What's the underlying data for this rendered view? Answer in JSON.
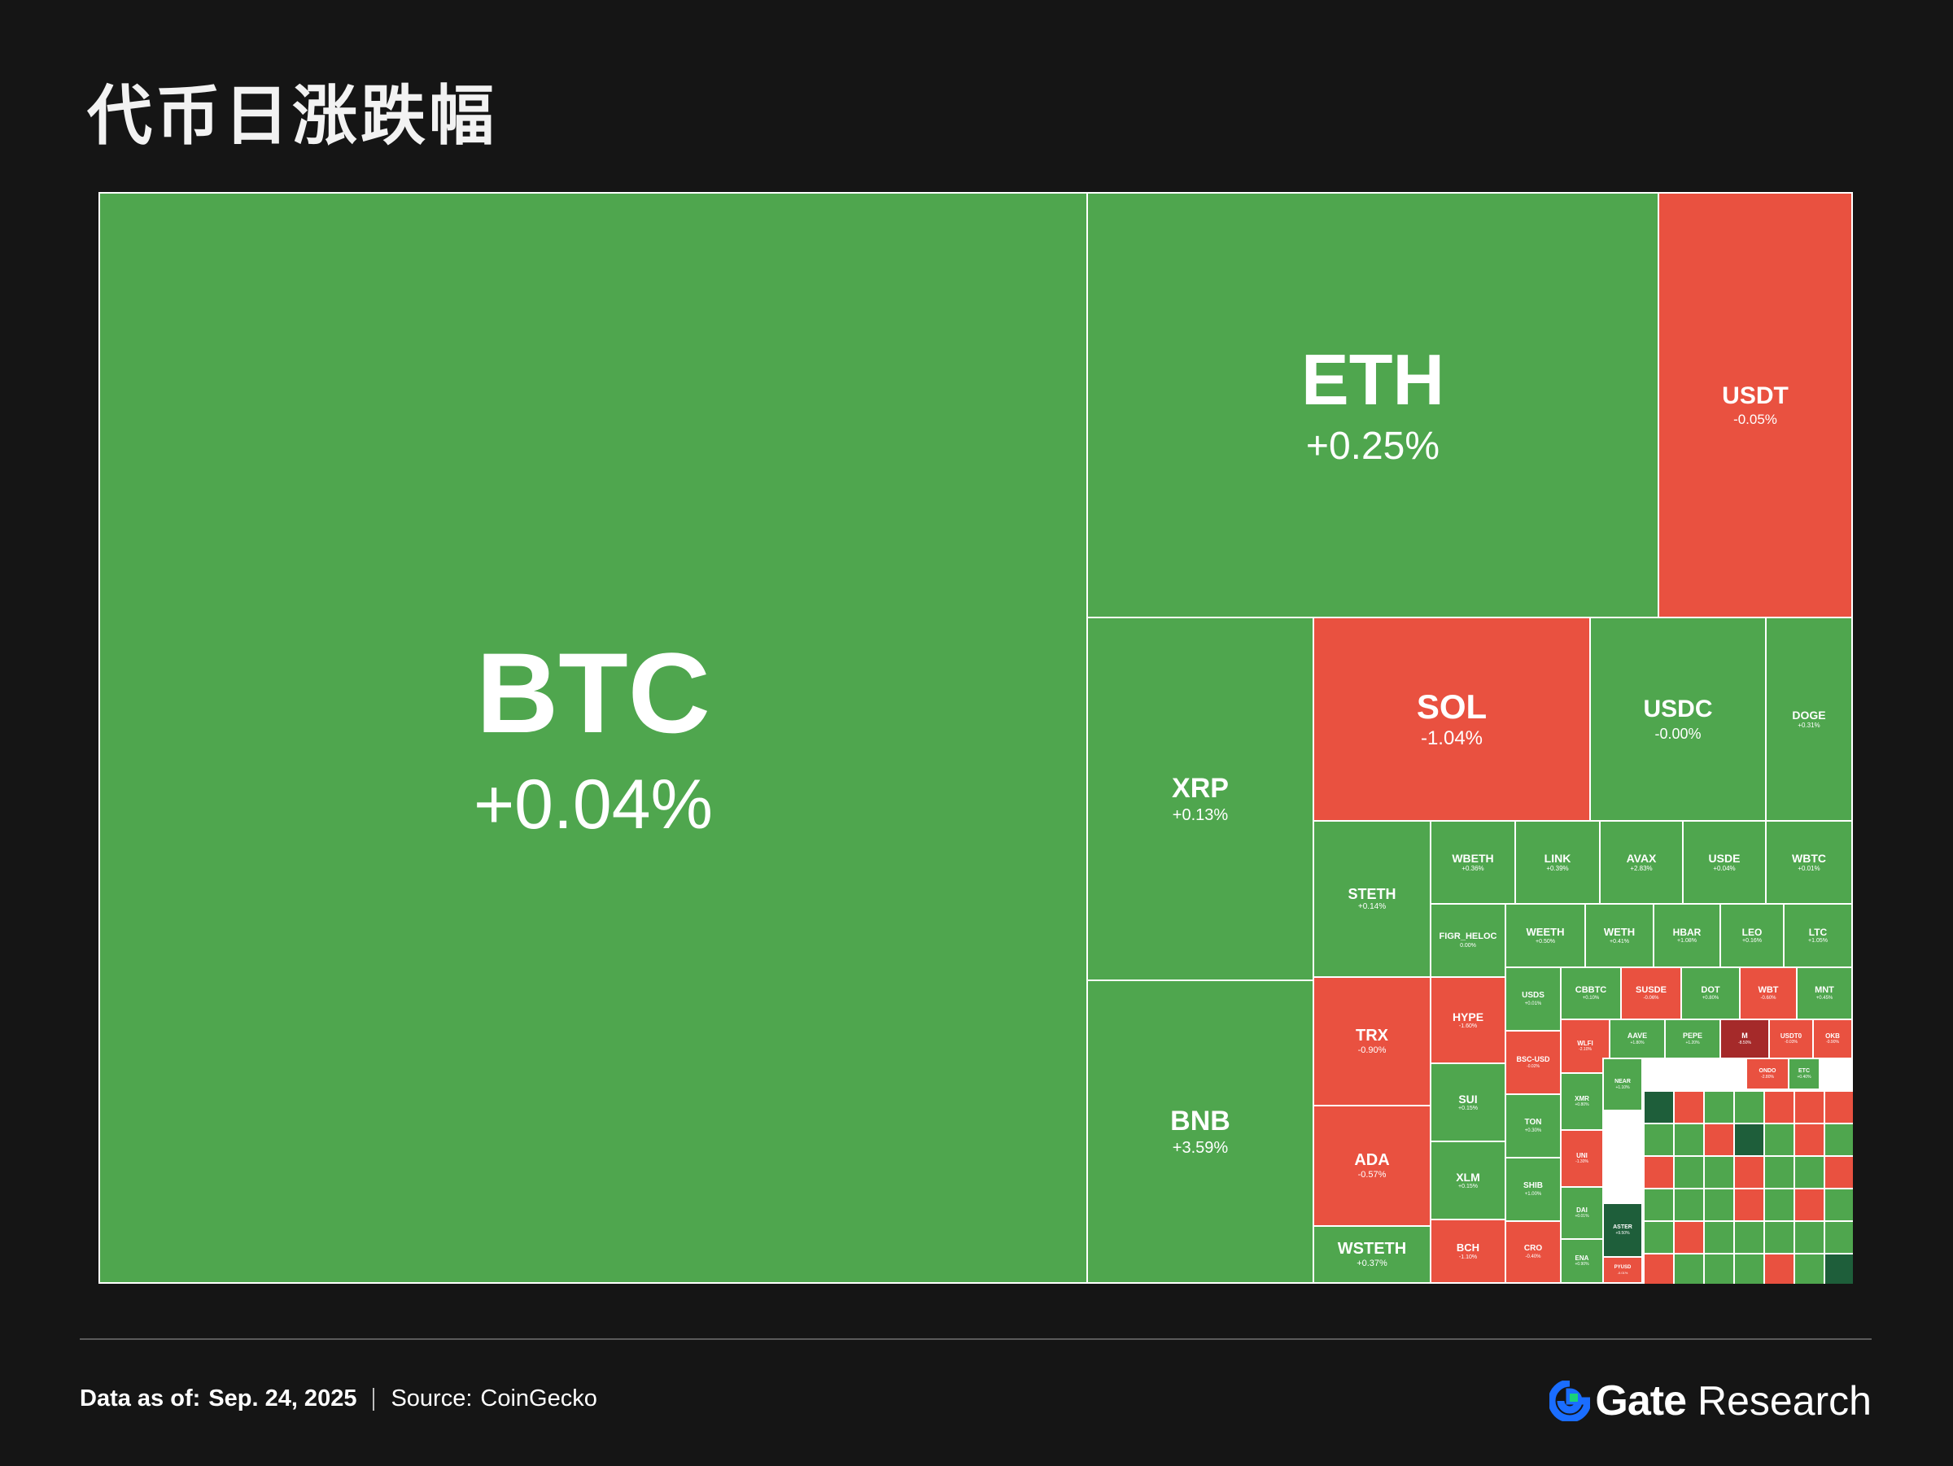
{
  "title": "代币日涨跌幅",
  "colors": {
    "positive": "#4fa64e",
    "negative": "#e95140",
    "deep_negative": "#a52a2a",
    "deep_positive": "#1e5e3a",
    "background": "#151515",
    "brand_blue": "#1a6dff"
  },
  "chart_data": {
    "type": "treemap",
    "title": "代币日涨跌幅",
    "items": [
      {
        "symbol": "BTC",
        "change": "+0.04%",
        "value": 0.04
      },
      {
        "symbol": "ETH",
        "change": "+0.25%",
        "value": 0.25
      },
      {
        "symbol": "USDT",
        "change": "-0.05%",
        "value": -0.05
      },
      {
        "symbol": "XRP",
        "change": "+0.13%",
        "value": 0.13
      },
      {
        "symbol": "BNB",
        "change": "+3.59%",
        "value": 3.59
      },
      {
        "symbol": "SOL",
        "change": "-1.04%",
        "value": -1.04
      },
      {
        "symbol": "USDC",
        "change": "-0.00%",
        "value": -0.0
      },
      {
        "symbol": "DOGE",
        "change": "+0.31%",
        "value": 0.31
      },
      {
        "symbol": "STETH",
        "change": "+0.14%",
        "value": 0.14
      },
      {
        "symbol": "WBETH",
        "change": "+0.36%",
        "value": 0.36
      },
      {
        "symbol": "LINK",
        "change": "+0.39%",
        "value": 0.39
      },
      {
        "symbol": "AVAX",
        "change": "+2.83%",
        "value": 2.83
      },
      {
        "symbol": "USDE",
        "change": "+0.04%",
        "value": 0.04
      },
      {
        "symbol": "WBTC",
        "change": "+0.01%",
        "value": 0.01
      },
      {
        "symbol": "FIGR_HELOC",
        "change": "0.00%",
        "value": 0.0
      },
      {
        "symbol": "WEETH",
        "change": "+0.50%",
        "value": 0.5
      },
      {
        "symbol": "WETH",
        "change": "+0.41%",
        "value": 0.41
      },
      {
        "symbol": "HBAR",
        "change": "+1.08%",
        "value": 1.08
      },
      {
        "symbol": "LEO",
        "change": "+0.16%",
        "value": 0.16
      },
      {
        "symbol": "LTC",
        "change": "+1.05%",
        "value": 1.05
      },
      {
        "symbol": "TRX",
        "change": "-0.90%",
        "value": -0.9
      },
      {
        "symbol": "HYPE",
        "change": "-1.60%",
        "value": -1.6
      },
      {
        "symbol": "ADA",
        "change": "-0.57%",
        "value": -0.57
      },
      {
        "symbol": "SUI",
        "change": "+0.15%",
        "value": 0.15
      },
      {
        "symbol": "XLM",
        "change": "+0.15%",
        "value": 0.15
      },
      {
        "symbol": "WSTETH",
        "change": "+0.37%",
        "value": 0.37
      },
      {
        "symbol": "BCH",
        "change": "-1.10%",
        "value": -1.1
      },
      {
        "symbol": "USDS",
        "change": "+0.01%",
        "value": 0.01
      },
      {
        "symbol": "CBBTC",
        "change": "+0.10%",
        "value": 0.1
      },
      {
        "symbol": "SUSDE",
        "change": "-0.06%",
        "value": -0.06
      },
      {
        "symbol": "DOT",
        "change": "+0.80%",
        "value": 0.8
      },
      {
        "symbol": "WBT",
        "change": "-0.60%",
        "value": -0.6
      },
      {
        "symbol": "MNT",
        "change": "+0.45%",
        "value": 0.45
      },
      {
        "symbol": "BSC-USD",
        "change": "-0.02%",
        "value": -0.02
      },
      {
        "symbol": "TON",
        "change": "+0.30%",
        "value": 0.3
      },
      {
        "symbol": "SHIB",
        "change": "+1.00%",
        "value": 1.0
      },
      {
        "symbol": "CRO",
        "change": "-0.40%",
        "value": -0.4
      },
      {
        "symbol": "AAVE",
        "change": "+1.80%",
        "value": 1.8
      },
      {
        "symbol": "PEPE",
        "change": "+1.20%",
        "value": 1.2
      },
      {
        "symbol": "M",
        "change": "-8.50%",
        "value": -8.5
      },
      {
        "symbol": "USDT0",
        "change": "-0.03%",
        "value": -0.03
      },
      {
        "symbol": "OKB",
        "change": "-0.90%",
        "value": -0.9
      },
      {
        "symbol": "WLFI",
        "change": "-2.10%",
        "value": -2.1
      },
      {
        "symbol": "XMR",
        "change": "+0.80%",
        "value": 0.8
      },
      {
        "symbol": "UNI",
        "change": "-1.30%",
        "value": -1.3
      },
      {
        "symbol": "NEAR",
        "change": "+1.10%",
        "value": 1.1
      },
      {
        "symbol": "ETC",
        "change": "+0.40%",
        "value": 0.4
      },
      {
        "symbol": "ONDO",
        "change": "-2.80%",
        "value": -2.8
      },
      {
        "symbol": "ENA",
        "change": "+0.90%",
        "value": 0.9
      },
      {
        "symbol": "DAI",
        "change": "+0.01%",
        "value": 0.01
      },
      {
        "symbol": "ASTER",
        "change": "+9.50%",
        "value": 9.5
      },
      {
        "symbol": "PYUSD",
        "change": "-0.01%",
        "value": -0.01
      }
    ]
  },
  "footer": {
    "data_as_of_label": "Data as of:",
    "data_as_of_value": "Sep. 24, 2025",
    "source_label": "Source:",
    "source_value": "CoinGecko"
  },
  "brand": {
    "logo_icon": "gate-logo-icon",
    "name": "Gate",
    "suffix": "Research"
  }
}
